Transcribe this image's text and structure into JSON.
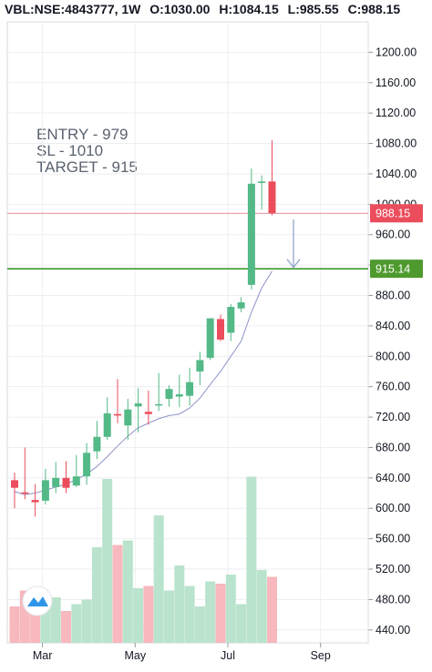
{
  "header": {
    "symbol": "VBL:NSE:4843777, 1W",
    "open_label": "O:",
    "open": "1030.00",
    "high_label": "H:",
    "high": "1084.15",
    "low_label": "L:",
    "low": "985.55",
    "close_label": "C:",
    "close": "988.15"
  },
  "annotations": {
    "entry": "ENTRY - 979",
    "sl": "SL - 1010",
    "target": "TARGET - 915"
  },
  "chart_data": {
    "type": "candlestick",
    "title": "VBL:NSE:4843777, 1W",
    "y_ticks": [
      "1200.00",
      "1160.00",
      "1120.00",
      "1080.00",
      "1040.00",
      "1000.00",
      "960.00",
      "920.00",
      "880.00",
      "840.00",
      "800.00",
      "760.00",
      "720.00",
      "680.00",
      "640.00",
      "600.00",
      "560.00",
      "520.00",
      "480.00",
      "440.00"
    ],
    "x_ticks": [
      {
        "label": "Mar",
        "index": 2
      },
      {
        "label": "May",
        "index": 11
      },
      {
        "label": "Jul",
        "index": 20
      },
      {
        "label": "Sep",
        "index": 29
      }
    ],
    "ylim": [
      423,
      1240
    ],
    "volume_ylim": [
      0,
      1
    ],
    "grid": true,
    "up_color": "#53b987",
    "down_color": "#eb4d5c",
    "vol_up_color": "#b9e3cc",
    "vol_down_color": "#f7b8be",
    "ma_color": "#8d93c8",
    "candles": [
      {
        "o": 637,
        "h": 647,
        "l": 600,
        "c": 627
      },
      {
        "o": 621,
        "h": 680,
        "l": 612,
        "c": 620
      },
      {
        "o": 611,
        "h": 632,
        "l": 589,
        "c": 608
      },
      {
        "o": 610,
        "h": 652,
        "l": 605,
        "c": 637
      },
      {
        "o": 628,
        "h": 661,
        "l": 620,
        "c": 640
      },
      {
        "o": 640,
        "h": 662,
        "l": 620,
        "c": 627
      },
      {
        "o": 630,
        "h": 670,
        "l": 628,
        "c": 642
      },
      {
        "o": 642,
        "h": 686,
        "l": 631,
        "c": 673
      },
      {
        "o": 675,
        "h": 715,
        "l": 665,
        "c": 694
      },
      {
        "o": 694,
        "h": 746,
        "l": 690,
        "c": 725
      },
      {
        "o": 724,
        "h": 770,
        "l": 712,
        "c": 722
      },
      {
        "o": 709,
        "h": 744,
        "l": 690,
        "c": 730
      },
      {
        "o": 734,
        "h": 758,
        "l": 700,
        "c": 738
      },
      {
        "o": 727,
        "h": 755,
        "l": 710,
        "c": 724
      },
      {
        "o": 736,
        "h": 778,
        "l": 728,
        "c": 737
      },
      {
        "o": 744,
        "h": 762,
        "l": 734,
        "c": 757
      },
      {
        "o": 747,
        "h": 776,
        "l": 733,
        "c": 750
      },
      {
        "o": 748,
        "h": 785,
        "l": 735,
        "c": 766
      },
      {
        "o": 780,
        "h": 806,
        "l": 762,
        "c": 795
      },
      {
        "o": 798,
        "h": 848,
        "l": 795,
        "c": 850
      },
      {
        "o": 849,
        "h": 855,
        "l": 820,
        "c": 822
      },
      {
        "o": 831,
        "h": 869,
        "l": 820,
        "c": 865
      },
      {
        "o": 863,
        "h": 878,
        "l": 858,
        "c": 871
      },
      {
        "o": 894,
        "h": 1047,
        "l": 888,
        "c": 1027
      },
      {
        "o": 1028,
        "h": 1038,
        "l": 993,
        "c": 1030
      },
      {
        "o": 1030,
        "h": 1084.15,
        "l": 985.55,
        "c": 988.15
      }
    ],
    "volume": [
      0.16,
      0.23,
      0.21,
      0.2,
      0.2,
      0.14,
      0.17,
      0.19,
      0.42,
      0.72,
      0.43,
      0.45,
      0.24,
      0.25,
      0.56,
      0.23,
      0.34,
      0.25,
      0.16,
      0.27,
      0.26,
      0.3,
      0.17,
      0.73,
      0.32,
      0.29
    ],
    "ma": [
      622,
      618,
      620,
      624,
      628,
      632,
      638,
      645,
      655,
      668,
      682,
      695,
      706,
      712,
      718,
      722,
      724,
      732,
      745,
      763,
      780,
      800,
      820,
      858,
      890,
      912
    ],
    "hlines": [
      {
        "value": 988.15,
        "color": "#e06b78",
        "label": "988.15"
      },
      {
        "value": 915.14,
        "color": "#3e9a2e",
        "label": "915.14"
      }
    ],
    "arrow": {
      "from": 980,
      "to": 917,
      "color": "#8da0c6"
    }
  },
  "logo": "tradingview-logo"
}
